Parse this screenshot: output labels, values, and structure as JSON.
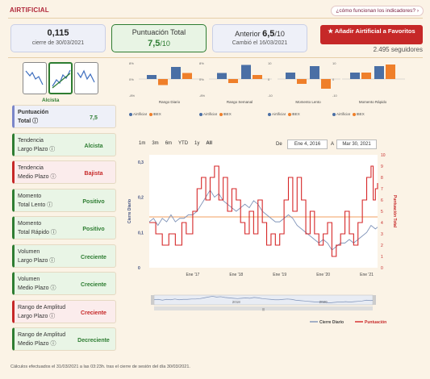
{
  "header": {
    "title": "AIRTIFICIAL",
    "help_link": "¿cómo funcionan los indicadores? ›"
  },
  "stats": {
    "price": {
      "value": "0,115",
      "caption": "cierre de 30/03/2021"
    },
    "score": {
      "label": "Puntuación Total",
      "value": "7,5",
      "scale": "/10"
    },
    "previous": {
      "label": "Anterior",
      "value": "6,5",
      "scale": "/10",
      "caption": "Cambió el 16/03/2021"
    }
  },
  "favorite_button": {
    "label": "★ Añadir Airtificial a Favoritos",
    "followers": "2.495 seguidores"
  },
  "trend": {
    "label": "Alcista",
    "selected_index": 1
  },
  "mini_charts": [
    {
      "caption": "Rango Diario",
      "ticks": [
        "8%",
        "0%",
        "-8%"
      ],
      "airtificial": [
        2,
        6
      ],
      "ibex": [
        -3,
        3
      ]
    },
    {
      "caption": "Rango Semanal",
      "ticks": [
        "8%",
        "0%",
        "-8%"
      ],
      "airtificial": [
        3,
        7
      ],
      "ibex": [
        -2,
        2
      ]
    },
    {
      "caption": "Momento Lento",
      "ticks": [
        "10",
        "0",
        "-10"
      ],
      "airtificial": [
        4,
        8
      ],
      "ibex": [
        -3,
        -6
      ]
    },
    {
      "caption": "Momento Rápido",
      "ticks": [
        "10",
        "0",
        "-10"
      ],
      "airtificial": [
        4,
        8
      ],
      "ibex": [
        4,
        9
      ]
    }
  ],
  "mini_legend": {
    "series_a": "AirtificiaI",
    "series_b": "IBEX",
    "color_a": "#4a6fa5",
    "color_b": "#ef7f2a"
  },
  "indicators": [
    {
      "name_1": "Puntuación",
      "name_2": "Total ⓘ",
      "value": "7,5",
      "tone": "blue"
    },
    {
      "name_1": "Tendencia",
      "name_2": "Largo Plazo ⓘ",
      "value": "Alcista",
      "tone": "green"
    },
    {
      "name_1": "Tendencia",
      "name_2": "Medio Plazo ⓘ",
      "value": "Bajista",
      "tone": "red"
    },
    {
      "name_1": "Momento",
      "name_2": "Total Lento ⓘ",
      "value": "Positivo",
      "tone": "green"
    },
    {
      "name_1": "Momento",
      "name_2": "Total Rápido ⓘ",
      "value": "Positivo",
      "tone": "green"
    },
    {
      "name_1": "Volumen",
      "name_2": "Largo Plazo ⓘ",
      "value": "Creciente",
      "tone": "green"
    },
    {
      "name_1": "Volumen",
      "name_2": "Medio Plazo ⓘ",
      "value": "Creciente",
      "tone": "green"
    },
    {
      "name_1": "Rango de Amplitud",
      "name_2": "Largo Plazo ⓘ",
      "value": "Creciente",
      "tone": "red"
    },
    {
      "name_1": "Rango de Amplitud",
      "name_2": "Medio Plazo ⓘ",
      "value": "Decreciente",
      "tone": "green"
    }
  ],
  "range_selector": {
    "buttons": [
      "1m",
      "3m",
      "6m",
      "YTD",
      "1y",
      "All"
    ],
    "selected": "All",
    "from_label": "De",
    "from": "Ene 4, 2016",
    "to_label": "A",
    "to": "Mar 30, 2021"
  },
  "chart_data": {
    "type": "line",
    "x_ticks": [
      "Ene '17",
      "Ene '18",
      "Ene '19",
      "Ene '20",
      "Ene '21"
    ],
    "y_left_ticks": [
      "0",
      "0,1",
      "0,2",
      "0,3"
    ],
    "y_right_ticks": [
      "0",
      "1",
      "2",
      "3",
      "4",
      "5",
      "6",
      "7",
      "8",
      "9",
      "10"
    ],
    "ylabel_left": "Cierre Diario",
    "ylabel_right": "Puntuación Total",
    "ylim_left": [
      0,
      0.32
    ],
    "ylim_right": [
      0,
      10
    ],
    "reference_line_score": 4.5,
    "navigator_labels": [
      "2018",
      "2020",
      "|||"
    ],
    "series": [
      {
        "name": "Cierre Diario",
        "color": "#7f93b8",
        "axis": "left",
        "points": [
          [
            2016.0,
            0.13
          ],
          [
            2016.1,
            0.14
          ],
          [
            2016.2,
            0.12
          ],
          [
            2016.3,
            0.14
          ],
          [
            2016.4,
            0.13
          ],
          [
            2016.5,
            0.15
          ],
          [
            2016.6,
            0.13
          ],
          [
            2016.7,
            0.14
          ],
          [
            2016.8,
            0.14
          ],
          [
            2016.9,
            0.15
          ],
          [
            2017.0,
            0.15
          ],
          [
            2017.1,
            0.16
          ],
          [
            2017.2,
            0.18
          ],
          [
            2017.3,
            0.2
          ],
          [
            2017.4,
            0.22
          ],
          [
            2017.5,
            0.2
          ],
          [
            2017.6,
            0.21
          ],
          [
            2017.7,
            0.19
          ],
          [
            2017.8,
            0.18
          ],
          [
            2017.9,
            0.17
          ],
          [
            2018.0,
            0.16
          ],
          [
            2018.1,
            0.17
          ],
          [
            2018.2,
            0.18
          ],
          [
            2018.3,
            0.17
          ],
          [
            2018.4,
            0.19
          ],
          [
            2018.5,
            0.18
          ],
          [
            2018.6,
            0.16
          ],
          [
            2018.7,
            0.15
          ],
          [
            2018.8,
            0.14
          ],
          [
            2018.9,
            0.13
          ],
          [
            2019.0,
            0.13
          ],
          [
            2019.1,
            0.14
          ],
          [
            2019.2,
            0.15
          ],
          [
            2019.3,
            0.14
          ],
          [
            2019.4,
            0.12
          ],
          [
            2019.5,
            0.11
          ],
          [
            2019.6,
            0.1
          ],
          [
            2019.7,
            0.09
          ],
          [
            2019.8,
            0.08
          ],
          [
            2019.9,
            0.07
          ],
          [
            2020.0,
            0.08
          ],
          [
            2020.1,
            0.07
          ],
          [
            2020.2,
            0.05
          ],
          [
            2020.3,
            0.06
          ],
          [
            2020.4,
            0.07
          ],
          [
            2020.5,
            0.07
          ],
          [
            2020.6,
            0.08
          ],
          [
            2020.7,
            0.07
          ],
          [
            2020.8,
            0.08
          ],
          [
            2020.9,
            0.09
          ],
          [
            2021.0,
            0.1
          ],
          [
            2021.1,
            0.12
          ],
          [
            2021.2,
            0.11
          ],
          [
            2021.25,
            0.115
          ]
        ]
      },
      {
        "name": "Puntuación",
        "color": "#d62728",
        "axis": "right",
        "points": [
          [
            2016.0,
            4
          ],
          [
            2016.15,
            3
          ],
          [
            2016.3,
            2
          ],
          [
            2016.45,
            3
          ],
          [
            2016.6,
            2
          ],
          [
            2016.75,
            4
          ],
          [
            2016.85,
            3
          ],
          [
            2017.0,
            5
          ],
          [
            2017.1,
            7
          ],
          [
            2017.2,
            8
          ],
          [
            2017.3,
            6
          ],
          [
            2017.4,
            8
          ],
          [
            2017.5,
            9
          ],
          [
            2017.6,
            6
          ],
          [
            2017.7,
            8
          ],
          [
            2017.8,
            5
          ],
          [
            2017.9,
            7
          ],
          [
            2018.0,
            6
          ],
          [
            2018.1,
            4
          ],
          [
            2018.2,
            3
          ],
          [
            2018.3,
            5
          ],
          [
            2018.4,
            3
          ],
          [
            2018.5,
            6
          ],
          [
            2018.6,
            4
          ],
          [
            2018.7,
            2
          ],
          [
            2018.8,
            3
          ],
          [
            2018.9,
            2
          ],
          [
            2019.0,
            3
          ],
          [
            2019.1,
            6
          ],
          [
            2019.2,
            8
          ],
          [
            2019.3,
            5
          ],
          [
            2019.4,
            8
          ],
          [
            2019.5,
            6
          ],
          [
            2019.6,
            3
          ],
          [
            2019.7,
            5
          ],
          [
            2019.8,
            3
          ],
          [
            2019.9,
            2
          ],
          [
            2020.0,
            3
          ],
          [
            2020.1,
            4
          ],
          [
            2020.2,
            1
          ],
          [
            2020.3,
            2
          ],
          [
            2020.4,
            3
          ],
          [
            2020.5,
            5
          ],
          [
            2020.6,
            3
          ],
          [
            2020.7,
            2
          ],
          [
            2020.8,
            4
          ],
          [
            2020.9,
            6
          ],
          [
            2021.0,
            8
          ],
          [
            2021.1,
            9
          ],
          [
            2021.15,
            6
          ],
          [
            2021.2,
            7
          ],
          [
            2021.25,
            7.5
          ]
        ]
      }
    ],
    "legend": [
      "Cierre Diario",
      "Puntuación"
    ]
  },
  "footer": "Cálculos efectuados el 31/03/2021 a las 03:23h. tras el cierre de sesión del día 30/03/2021."
}
